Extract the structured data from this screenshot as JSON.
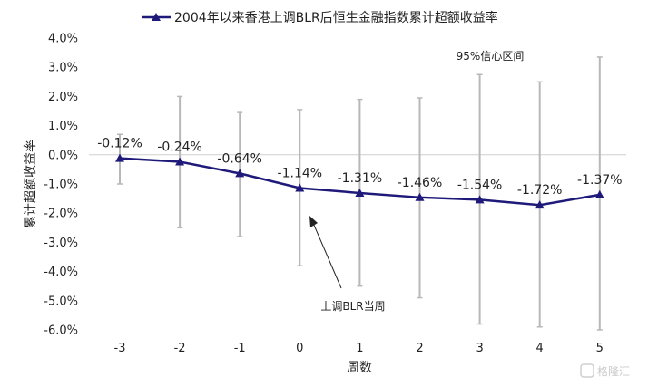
{
  "chart_data": {
    "type": "line",
    "title": "",
    "series": [
      {
        "name": "2004年以来香港上调BLR后恒生金融指数累计超额收益率",
        "x": [
          -3,
          -2,
          -1,
          0,
          1,
          2,
          3,
          4,
          5
        ],
        "values": [
          -0.12,
          -0.24,
          -0.64,
          -1.14,
          -1.31,
          -1.46,
          -1.54,
          -1.72,
          -1.37
        ],
        "labels": [
          "-0.12%",
          "-0.24%",
          "-0.64%",
          "-1.14%",
          "-1.31%",
          "-1.46%",
          "-1.54%",
          "-1.72%",
          "-1.37%"
        ],
        "ci_low": [
          -1.0,
          -2.5,
          -2.8,
          -3.8,
          -4.5,
          -4.9,
          -5.8,
          -5.9,
          -6.0
        ],
        "ci_high": [
          0.7,
          2.0,
          1.45,
          1.55,
          1.9,
          1.95,
          2.75,
          2.5,
          3.35
        ]
      }
    ],
    "xlabel": "周数",
    "ylabel": "累计超额收益率",
    "ylim": [
      -6.0,
      4.0
    ],
    "y_ticks": [
      "4.0%",
      "3.0%",
      "2.0%",
      "1.0%",
      "0.0%",
      "-1.0%",
      "-2.0%",
      "-3.0%",
      "-4.0%",
      "-5.0%",
      "-6.0%"
    ],
    "x_ticks": [
      "-3",
      "-2",
      "-1",
      "0",
      "1",
      "2",
      "3",
      "4",
      "5"
    ],
    "legend_position": "top-center",
    "grid": false,
    "annotations": {
      "ci": "95%信心区间",
      "event": "上调BLR当周"
    },
    "colors": {
      "line": "#1f1a7a",
      "error_bar": "#b8b8b8",
      "axis": "#cfcfcf"
    }
  },
  "watermark": {
    "text": "格隆汇"
  }
}
